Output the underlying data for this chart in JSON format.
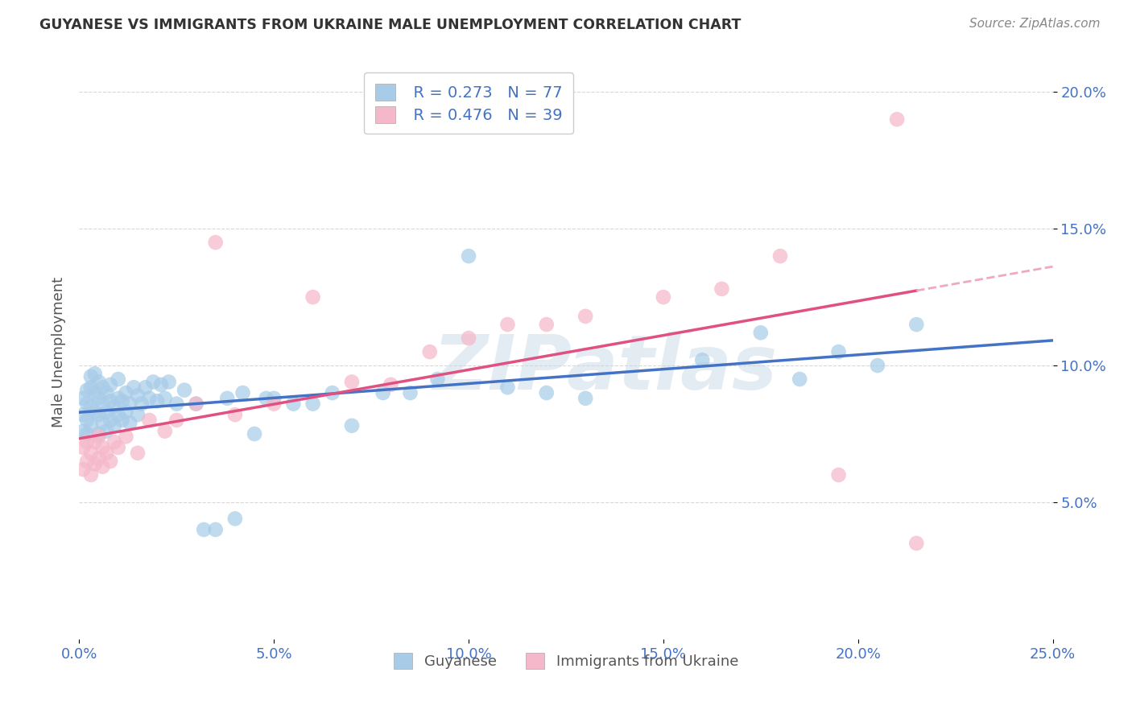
{
  "title": "GUYANESE VS IMMIGRANTS FROM UKRAINE MALE UNEMPLOYMENT CORRELATION CHART",
  "source": "Source: ZipAtlas.com",
  "ylabel": "Male Unemployment",
  "xlim": [
    0.0,
    0.25
  ],
  "ylim": [
    0.0,
    0.21
  ],
  "ytick_vals": [
    0.05,
    0.1,
    0.15,
    0.2
  ],
  "ytick_labels": [
    "5.0%",
    "10.0%",
    "15.0%",
    "20.0%"
  ],
  "xtick_vals": [
    0.0,
    0.05,
    0.1,
    0.15,
    0.2,
    0.25
  ],
  "xtick_labels": [
    "0.0%",
    "5.0%",
    "10.0%",
    "15.0%",
    "20.0%",
    "25.0%"
  ],
  "blue_fill": "#a8cce8",
  "pink_fill": "#f5b8ca",
  "blue_line": "#4472c4",
  "pink_line": "#e05080",
  "pink_dash": "#f0aabf",
  "legend_blue_r": "R = 0.273",
  "legend_blue_n": "N = 77",
  "legend_pink_r": "R = 0.476",
  "legend_pink_n": "N = 39",
  "watermark": "ZIPatlas",
  "tick_color": "#4472c4",
  "grid_color": "#d8d8d8",
  "title_color": "#333333",
  "source_color": "#888888",
  "ylabel_color": "#555555",
  "guyanese_x": [
    0.001,
    0.001,
    0.001,
    0.002,
    0.002,
    0.002,
    0.002,
    0.003,
    0.003,
    0.003,
    0.003,
    0.004,
    0.004,
    0.004,
    0.005,
    0.005,
    0.005,
    0.005,
    0.006,
    0.006,
    0.006,
    0.007,
    0.007,
    0.007,
    0.008,
    0.008,
    0.008,
    0.009,
    0.009,
    0.01,
    0.01,
    0.01,
    0.011,
    0.011,
    0.012,
    0.012,
    0.013,
    0.013,
    0.014,
    0.015,
    0.015,
    0.016,
    0.017,
    0.018,
    0.019,
    0.02,
    0.021,
    0.022,
    0.023,
    0.025,
    0.027,
    0.03,
    0.032,
    0.035,
    0.038,
    0.04,
    0.042,
    0.045,
    0.048,
    0.05,
    0.055,
    0.06,
    0.065,
    0.07,
    0.078,
    0.085,
    0.092,
    0.1,
    0.11,
    0.12,
    0.13,
    0.16,
    0.175,
    0.185,
    0.195,
    0.205,
    0.215
  ],
  "guyanese_y": [
    0.082,
    0.076,
    0.088,
    0.08,
    0.086,
    0.075,
    0.091,
    0.078,
    0.085,
    0.092,
    0.096,
    0.083,
    0.09,
    0.097,
    0.075,
    0.082,
    0.088,
    0.094,
    0.079,
    0.086,
    0.092,
    0.076,
    0.083,
    0.09,
    0.08,
    0.087,
    0.093,
    0.078,
    0.085,
    0.082,
    0.088,
    0.095,
    0.08,
    0.087,
    0.083,
    0.09,
    0.079,
    0.086,
    0.092,
    0.082,
    0.089,
    0.086,
    0.092,
    0.088,
    0.094,
    0.087,
    0.093,
    0.088,
    0.094,
    0.086,
    0.091,
    0.086,
    0.04,
    0.04,
    0.088,
    0.044,
    0.09,
    0.075,
    0.088,
    0.088,
    0.086,
    0.086,
    0.09,
    0.078,
    0.09,
    0.09,
    0.095,
    0.14,
    0.092,
    0.09,
    0.088,
    0.102,
    0.112,
    0.095,
    0.105,
    0.1,
    0.115
  ],
  "ukraine_x": [
    0.001,
    0.001,
    0.002,
    0.002,
    0.003,
    0.003,
    0.004,
    0.004,
    0.005,
    0.005,
    0.006,
    0.006,
    0.007,
    0.008,
    0.009,
    0.01,
    0.012,
    0.015,
    0.018,
    0.022,
    0.025,
    0.03,
    0.035,
    0.04,
    0.05,
    0.06,
    0.07,
    0.08,
    0.09,
    0.1,
    0.11,
    0.12,
    0.13,
    0.15,
    0.165,
    0.18,
    0.195,
    0.21,
    0.215
  ],
  "ukraine_y": [
    0.062,
    0.07,
    0.065,
    0.072,
    0.06,
    0.068,
    0.064,
    0.072,
    0.066,
    0.074,
    0.063,
    0.07,
    0.068,
    0.065,
    0.072,
    0.07,
    0.074,
    0.068,
    0.08,
    0.076,
    0.08,
    0.086,
    0.145,
    0.082,
    0.086,
    0.125,
    0.094,
    0.093,
    0.105,
    0.11,
    0.115,
    0.115,
    0.118,
    0.125,
    0.128,
    0.14,
    0.06,
    0.19,
    0.035
  ]
}
